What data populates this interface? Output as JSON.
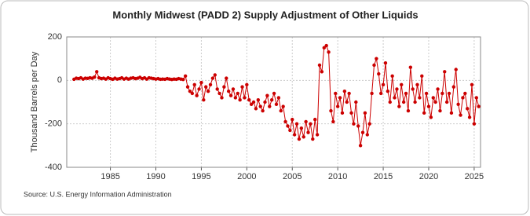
{
  "chart_data": {
    "type": "line",
    "title": "Monthly Midwest (PADD 2) Supply Adjustment of Other Liquids",
    "y_label": "Thousand Barrels per Day",
    "source": "Source: U.S. Energy Information Administration",
    "xlim": [
      1980.2,
      2025.7
    ],
    "xticks": [
      1985,
      1990,
      1995,
      2000,
      2005,
      2010,
      2015,
      2020,
      2025
    ],
    "ylim": [
      -400,
      200
    ],
    "yticks": [
      -400,
      -200,
      0,
      200
    ],
    "grid": true,
    "x": [
      1981,
      1981.25,
      1981.5,
      1981.75,
      1982,
      1982.25,
      1982.5,
      1982.75,
      1983,
      1983.25,
      1983.5,
      1983.75,
      1984,
      1984.25,
      1984.5,
      1984.75,
      1985,
      1985.25,
      1985.5,
      1985.75,
      1986,
      1986.25,
      1986.5,
      1986.75,
      1987,
      1987.25,
      1987.5,
      1987.75,
      1988,
      1988.25,
      1988.5,
      1988.75,
      1989,
      1989.25,
      1989.5,
      1989.75,
      1990,
      1990.25,
      1990.5,
      1990.75,
      1991,
      1991.25,
      1991.5,
      1991.75,
      1992,
      1992.25,
      1992.5,
      1992.75,
      1993,
      1993.25,
      1993.5,
      1993.75,
      1994,
      1994.25,
      1994.5,
      1994.75,
      1995,
      1995.25,
      1995.5,
      1995.75,
      1996,
      1996.25,
      1996.5,
      1996.75,
      1997,
      1997.25,
      1997.5,
      1997.75,
      1998,
      1998.25,
      1998.5,
      1998.75,
      1999,
      1999.25,
      1999.5,
      1999.75,
      2000,
      2000.25,
      2000.5,
      2000.75,
      2001,
      2001.25,
      2001.5,
      2001.75,
      2002,
      2002.25,
      2002.5,
      2002.75,
      2003,
      2003.25,
      2003.5,
      2003.75,
      2004,
      2004.25,
      2004.5,
      2004.75,
      2005,
      2005.25,
      2005.5,
      2005.75,
      2006,
      2006.25,
      2006.5,
      2006.75,
      2007,
      2007.25,
      2007.5,
      2007.75,
      2008,
      2008.25,
      2008.5,
      2008.75,
      2009,
      2009.25,
      2009.5,
      2009.75,
      2010,
      2010.25,
      2010.5,
      2010.75,
      2011,
      2011.25,
      2011.5,
      2011.75,
      2012,
      2012.25,
      2012.5,
      2012.75,
      2013,
      2013.25,
      2013.5,
      2013.75,
      2014,
      2014.25,
      2014.5,
      2014.75,
      2015,
      2015.25,
      2015.5,
      2015.75,
      2016,
      2016.25,
      2016.5,
      2016.75,
      2017,
      2017.25,
      2017.5,
      2017.75,
      2018,
      2018.25,
      2018.5,
      2018.75,
      2019,
      2019.25,
      2019.5,
      2019.75,
      2020,
      2020.25,
      2020.5,
      2020.75,
      2021,
      2021.25,
      2021.5,
      2021.75,
      2022,
      2022.25,
      2022.5,
      2022.75,
      2023,
      2023.25,
      2023.5,
      2023.75,
      2024,
      2024.25,
      2024.5,
      2024.75,
      2025,
      2025.25,
      2025.5
    ],
    "series": [
      {
        "color": "#cc0000",
        "values": [
          5,
          10,
          8,
          12,
          6,
          10,
          9,
          12,
          10,
          15,
          40,
          12,
          8,
          10,
          6,
          12,
          8,
          5,
          10,
          6,
          8,
          12,
          6,
          10,
          6,
          10,
          12,
          8,
          10,
          14,
          8,
          12,
          6,
          12,
          10,
          8,
          6,
          8,
          5,
          6,
          5,
          8,
          6,
          4,
          6,
          5,
          8,
          6,
          4,
          20,
          -30,
          -50,
          -60,
          -20,
          -70,
          -40,
          -10,
          -90,
          -30,
          -50,
          -20,
          10,
          25,
          -40,
          -60,
          -80,
          -30,
          10,
          -50,
          -70,
          -40,
          -80,
          -60,
          -90,
          -30,
          -80,
          -20,
          -90,
          -110,
          -100,
          -130,
          -90,
          -120,
          -140,
          -100,
          -70,
          -120,
          -90,
          -60,
          -110,
          -80,
          -140,
          -120,
          -190,
          -210,
          -230,
          -180,
          -250,
          -200,
          -270,
          -220,
          -260,
          -190,
          -240,
          -200,
          -270,
          -180,
          -250,
          70,
          40,
          150,
          160,
          130,
          -140,
          -190,
          -60,
          -120,
          -80,
          -150,
          -50,
          -100,
          -60,
          -150,
          -200,
          -100,
          -210,
          -300,
          -240,
          -150,
          -250,
          -200,
          -60,
          70,
          100,
          30,
          -60,
          -20,
          80,
          -50,
          -100,
          20,
          -80,
          -40,
          -120,
          -20,
          -100,
          -60,
          -140,
          60,
          -40,
          -100,
          -20,
          -80,
          20,
          -150,
          -60,
          -120,
          -170,
          -80,
          -100,
          -40,
          -140,
          -60,
          40,
          -100,
          -60,
          -150,
          -30,
          50,
          -110,
          -160,
          -80,
          -60,
          -130,
          -170,
          -20,
          -200,
          -80,
          -120
        ]
      }
    ]
  }
}
